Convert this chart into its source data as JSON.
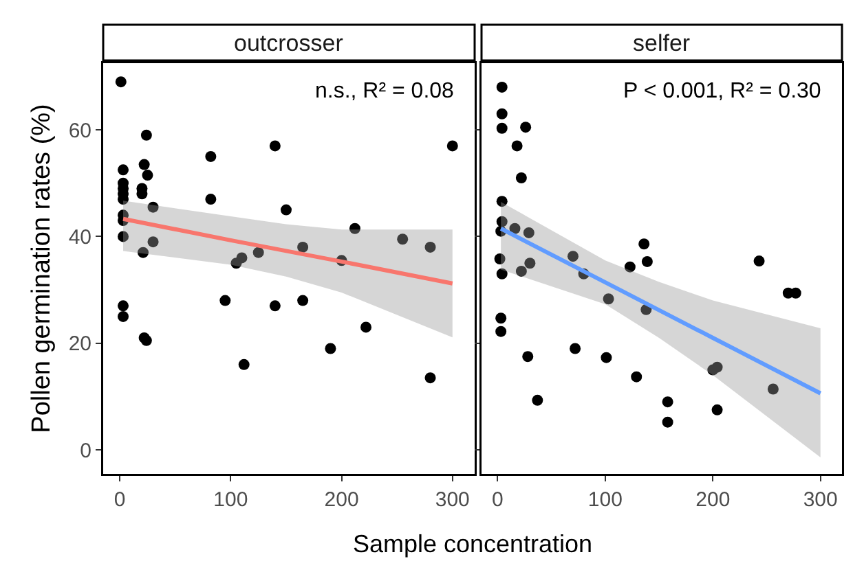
{
  "chart_data": [
    {
      "type": "scatter",
      "title": "outcrosser",
      "xlabel": "Sample concentration",
      "ylabel": "Pollen germination rates (%)",
      "xlim": [
        -15,
        320
      ],
      "ylim": [
        -4.5,
        72.5
      ],
      "xticks": [
        0,
        100,
        200,
        300
      ],
      "yticks": [
        0,
        20,
        40,
        60
      ],
      "grid": false,
      "annotations": [
        "n.s., R² = 0.08"
      ],
      "series": [
        {
          "color": "#000000",
          "marker": "circle",
          "x": [
            1,
            3,
            3,
            3,
            3,
            3,
            3,
            3,
            3,
            3,
            3,
            20,
            20,
            22,
            24,
            25,
            21,
            22,
            24,
            30,
            30,
            82,
            82,
            95,
            105,
            110,
            112,
            125,
            140,
            140,
            150,
            165,
            165,
            190,
            200,
            212,
            222,
            255,
            280,
            280,
            300
          ],
          "values": [
            69,
            52.5,
            50,
            49,
            48,
            47,
            44,
            43,
            40,
            27,
            25,
            49,
            48,
            53.5,
            59,
            51.5,
            37,
            21,
            20.5,
            45.5,
            39,
            55,
            47,
            28,
            35,
            36,
            16,
            37,
            57,
            27,
            45,
            38,
            28,
            19,
            35.5,
            41.5,
            23,
            39.5,
            38,
            13.5,
            57
          ]
        },
        {
          "type": "line",
          "marker": "none",
          "color": "#f8766d",
          "x": [
            3,
            100,
            150,
            200,
            300
          ],
          "values": [
            43.3,
            39.3,
            37.3,
            35.3,
            31.2
          ],
          "lower": [
            37.3,
            34.7,
            32.5,
            29.5,
            21.1
          ],
          "upper": [
            46.7,
            43.8,
            42.3,
            41.3,
            41.3
          ]
        }
      ]
    },
    {
      "type": "scatter",
      "title": "selfer",
      "xlim": [
        -15,
        320
      ],
      "ylim": [
        -4.5,
        72.5
      ],
      "xticks": [
        0,
        100,
        200,
        300
      ],
      "yticks": [
        0,
        20,
        40,
        60
      ],
      "grid": false,
      "tick_labels": "x",
      "annotations": [
        "P < 0.001, R² = 0.30"
      ],
      "series": [
        {
          "color": "#000000",
          "marker": "circle",
          "x": [
            4,
            4,
            4,
            26,
            18,
            22,
            4,
            4,
            3,
            16,
            29,
            2,
            4,
            22,
            30,
            3,
            3,
            28,
            37,
            70,
            80,
            103,
            72,
            101,
            123,
            136,
            139,
            138,
            129,
            158,
            158,
            200,
            204,
            204,
            243,
            256,
            270,
            277
          ],
          "values": [
            68,
            63,
            60.3,
            60.5,
            57,
            51,
            46.6,
            42.8,
            41,
            41.5,
            40.7,
            35.8,
            33,
            33.5,
            35,
            24.7,
            22.2,
            17.5,
            9.3,
            36.3,
            33,
            28.3,
            19,
            17.3,
            34.3,
            38.6,
            35.3,
            26.3,
            13.7,
            9,
            5.2,
            15,
            15.5,
            7.5,
            35.4,
            11.4,
            29.4,
            29.4
          ]
        },
        {
          "type": "line",
          "marker": "none",
          "color": "#619cff",
          "x": [
            3,
            100,
            150,
            200,
            300
          ],
          "values": [
            41.5,
            31.4,
            26.2,
            21,
            10.6
          ],
          "lower": [
            33.8,
            27.3,
            21,
            14,
            -1.4
          ],
          "upper": [
            46.5,
            35.5,
            31.5,
            28,
            22.8
          ]
        }
      ]
    }
  ]
}
